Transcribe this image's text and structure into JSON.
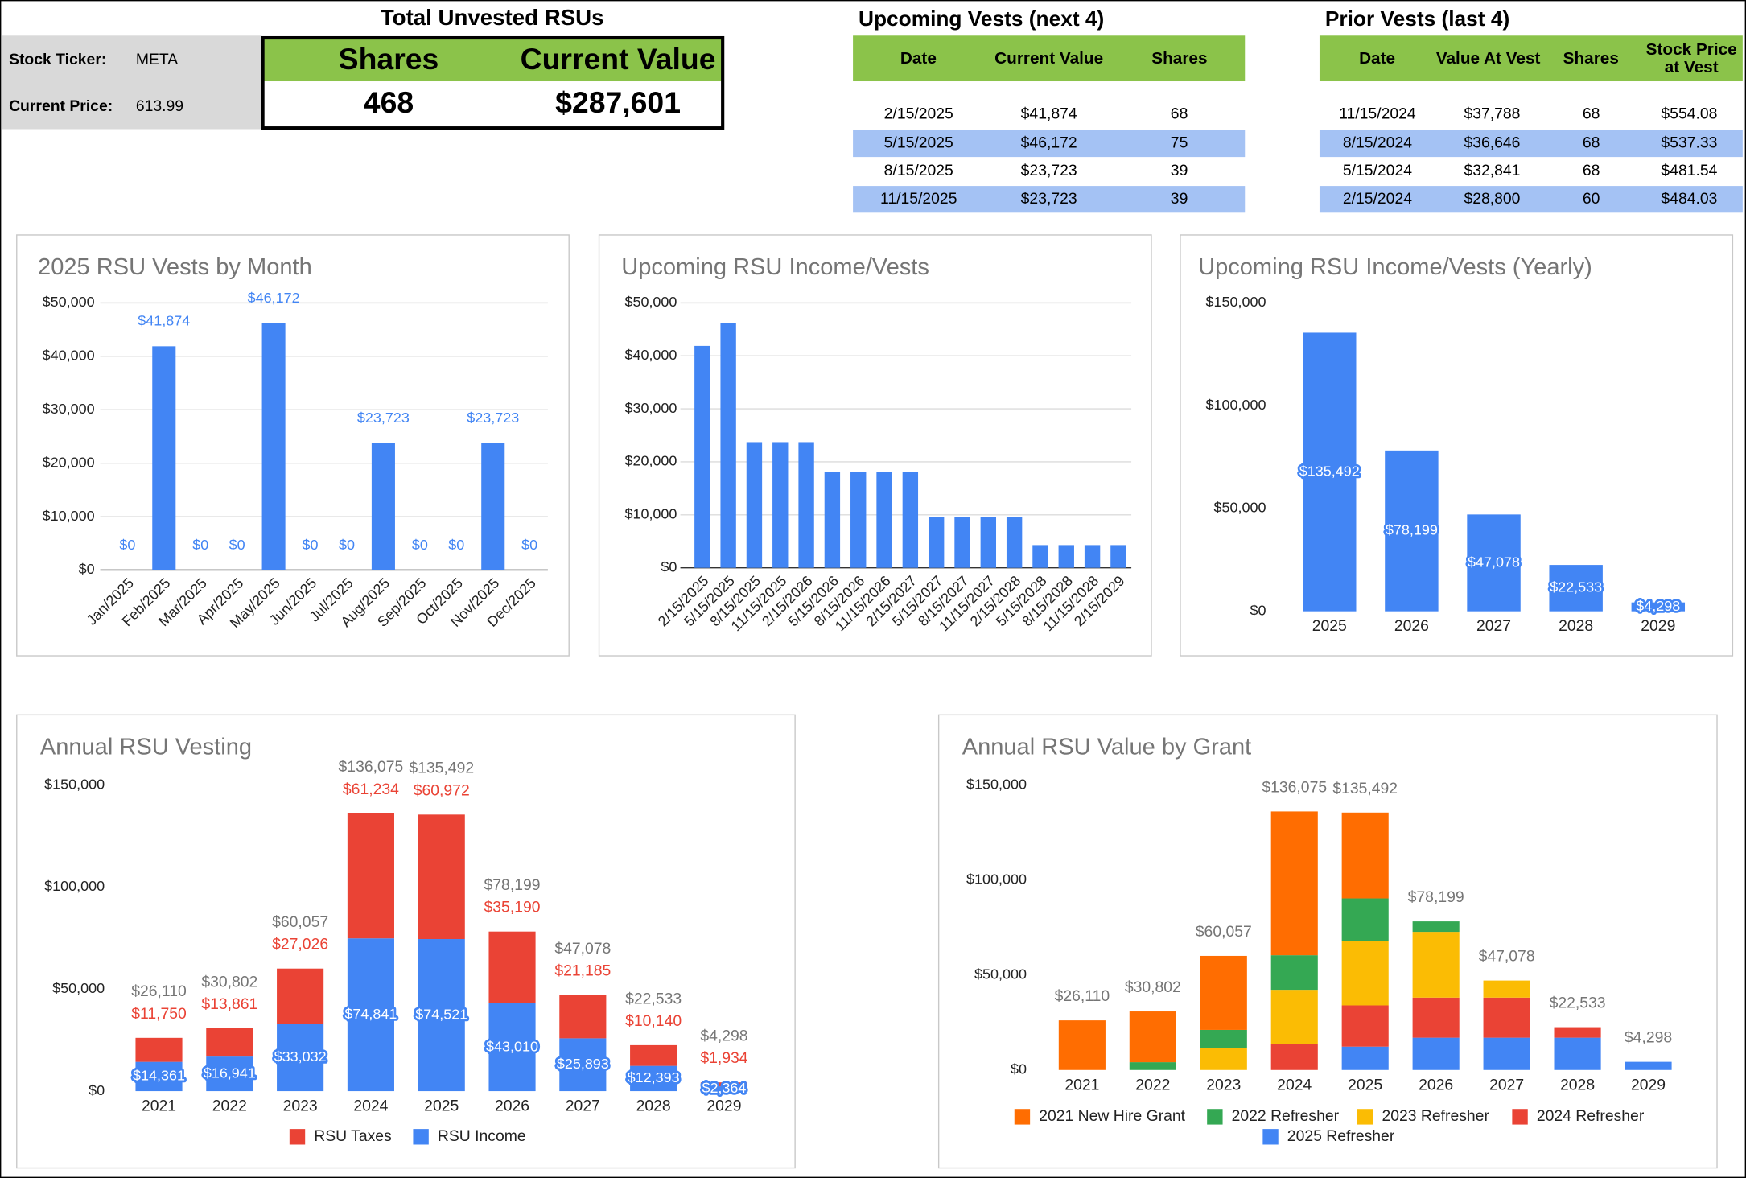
{
  "summary": {
    "title": "Total Unvested RSUs",
    "fields": [
      {
        "label": "Stock Ticker:",
        "value": "META"
      },
      {
        "label": "Current Price:",
        "value": "613.99"
      }
    ],
    "columns": [
      "Shares",
      "Current Value"
    ],
    "values": [
      "468",
      "$287,601"
    ]
  },
  "upcoming": {
    "title": "Upcoming Vests (next 4)",
    "columns": [
      "Date",
      "Current Value",
      "Shares"
    ],
    "rows": [
      [
        "2/15/2025",
        "$41,874",
        "68"
      ],
      [
        "5/15/2025",
        "$46,172",
        "75"
      ],
      [
        "8/15/2025",
        "$23,723",
        "39"
      ],
      [
        "11/15/2025",
        "$23,723",
        "39"
      ]
    ]
  },
  "prior": {
    "title": "Prior Vests (last 4)",
    "columns": [
      "Date",
      "Value At Vest",
      "Shares",
      "Stock Price at Vest"
    ],
    "rows": [
      [
        "11/15/2024",
        "$37,788",
        "68",
        "$554.08"
      ],
      [
        "8/15/2024",
        "$36,646",
        "68",
        "$537.33"
      ],
      [
        "5/15/2024",
        "$32,841",
        "68",
        "$481.54"
      ],
      [
        "2/15/2024",
        "$28,800",
        "60",
        "$484.03"
      ]
    ]
  },
  "chart_data": [
    {
      "type": "bar",
      "title": "2025 RSU Vests by Month",
      "color": "#4285f4",
      "grid": true,
      "categories": [
        "Jan/2025",
        "Feb/2025",
        "Mar/2025",
        "Apr/2025",
        "May/2025",
        "Jun/2025",
        "Jul/2025",
        "Aug/2025",
        "Sep/2025",
        "Oct/2025",
        "Nov/2025",
        "Dec/2025"
      ],
      "values": [
        0,
        41874,
        0,
        0,
        46172,
        0,
        0,
        23723,
        0,
        0,
        23723,
        0
      ],
      "value_labels": [
        "$0",
        "$41,874",
        "$0",
        "$0",
        "$46,172",
        "$0",
        "$0",
        "$23,723",
        "$0",
        "$0",
        "$23,723",
        "$0"
      ],
      "ylim": [
        0,
        50000
      ],
      "yticks": [
        {
          "value": 0,
          "label": "$0"
        },
        {
          "value": 10000,
          "label": "$10,000"
        },
        {
          "value": 20000,
          "label": "$20,000"
        },
        {
          "value": 30000,
          "label": "$30,000"
        },
        {
          "value": 40000,
          "label": "$40,000"
        },
        {
          "value": 50000,
          "label": "$50,000"
        }
      ]
    },
    {
      "type": "bar",
      "title": "Upcoming RSU Income/Vests",
      "color": "#4285f4",
      "grid": true,
      "categories": [
        "2/15/2025",
        "5/15/2025",
        "8/15/2025",
        "11/15/2025",
        "2/15/2026",
        "5/15/2026",
        "8/15/2026",
        "11/15/2026",
        "2/15/2027",
        "5/15/2027",
        "8/15/2027",
        "11/15/2027",
        "2/15/2028",
        "5/15/2028",
        "8/15/2028",
        "11/15/2028",
        "2/15/2029"
      ],
      "values": [
        41874,
        46172,
        23723,
        23723,
        23723,
        18159,
        18159,
        18159,
        18159,
        9640,
        9640,
        9640,
        9640,
        4298,
        4298,
        4298,
        4298
      ],
      "ylim": [
        0,
        50000
      ],
      "yticks": [
        {
          "value": 0,
          "label": "$0"
        },
        {
          "value": 10000,
          "label": "$10,000"
        },
        {
          "value": 20000,
          "label": "$20,000"
        },
        {
          "value": 30000,
          "label": "$30,000"
        },
        {
          "value": 40000,
          "label": "$40,000"
        },
        {
          "value": 50000,
          "label": "$50,000"
        }
      ]
    },
    {
      "type": "bar",
      "title": "Upcoming RSU Income/Vests (Yearly)",
      "color": "#4285f4",
      "grid": false,
      "categories": [
        "2025",
        "2026",
        "2027",
        "2028",
        "2029"
      ],
      "values": [
        135492,
        78199,
        47078,
        22533,
        4298
      ],
      "value_labels": [
        "$135,492",
        "$78,199",
        "$47,078",
        "$22,533",
        "$4,298"
      ],
      "ylim": [
        0,
        150000
      ],
      "yticks": [
        {
          "value": 0,
          "label": "$0"
        },
        {
          "value": 50000,
          "label": "$50,000"
        },
        {
          "value": 100000,
          "label": "$100,000"
        },
        {
          "value": 150000,
          "label": "$150,000"
        }
      ]
    },
    {
      "type": "stacked_bar",
      "title": "Annual RSU Vesting",
      "grid": false,
      "categories": [
        "2021",
        "2022",
        "2023",
        "2024",
        "2025",
        "2026",
        "2027",
        "2028",
        "2029"
      ],
      "series": [
        {
          "name": "RSU Income",
          "color": "#4285f4",
          "values": [
            14361,
            16941,
            33032,
            74841,
            74521,
            43010,
            25893,
            12393,
            2364
          ],
          "value_labels": [
            "$14,361",
            "$16,941",
            "$33,032",
            "$74,841",
            "$74,521",
            "$43,010",
            "$25,893",
            "$12,393",
            "$2,364"
          ]
        },
        {
          "name": "RSU Taxes",
          "color": "#ea4335",
          "values": [
            11750,
            13861,
            27026,
            61234,
            60972,
            35190,
            21185,
            10140,
            1934
          ],
          "value_labels": [
            "$11,750",
            "$13,861",
            "$27,026",
            "$61,234",
            "$60,972",
            "$35,190",
            "$21,185",
            "$10,140",
            "$1,934"
          ]
        }
      ],
      "totals": [
        26110,
        30802,
        60057,
        136075,
        135492,
        78199,
        47078,
        22533,
        4298
      ],
      "total_labels": [
        "$26,110",
        "$30,802",
        "$60,057",
        "$136,075",
        "$135,492",
        "$78,199",
        "$47,078",
        "$22,533",
        "$4,298"
      ],
      "ylim": [
        0,
        150000
      ],
      "yticks": [
        {
          "value": 0,
          "label": "$0"
        },
        {
          "value": 50000,
          "label": "$50,000"
        },
        {
          "value": 100000,
          "label": "$100,000"
        },
        {
          "value": 150000,
          "label": "$150,000"
        }
      ]
    },
    {
      "type": "stacked_bar",
      "title": "Annual RSU Value by Grant",
      "grid": false,
      "categories": [
        "2021",
        "2022",
        "2023",
        "2024",
        "2025",
        "2026",
        "2027",
        "2028",
        "2029"
      ],
      "series": [
        {
          "name": "2025 Refresher",
          "color": "#4285f4",
          "values": [
            0,
            0,
            0,
            0,
            12300,
            17000,
            17000,
            17000,
            4298
          ]
        },
        {
          "name": "2024 Refresher",
          "color": "#ea4335",
          "values": [
            0,
            0,
            0,
            13500,
            21700,
            21100,
            21100,
            5533,
            0
          ]
        },
        {
          "name": "2023 Refresher",
          "color": "#fbbc04",
          "values": [
            0,
            0,
            11700,
            28700,
            34000,
            34600,
            8978,
            0,
            0
          ]
        },
        {
          "name": "2022 Refresher",
          "color": "#34a853",
          "values": [
            0,
            4100,
            9400,
            18200,
            22300,
            5500,
            0,
            0,
            0
          ]
        },
        {
          "name": "2021 New Hire Grant",
          "color": "#ff6d01",
          "values": [
            26110,
            26702,
            38957,
            75675,
            45192,
            0,
            0,
            0,
            0
          ]
        }
      ],
      "totals": [
        26110,
        30802,
        60057,
        136075,
        135492,
        78199,
        47078,
        22533,
        4298
      ],
      "total_labels": [
        "$26,110",
        "$30,802",
        "$60,057",
        "$136,075",
        "$135,492",
        "$78,199",
        "$47,078",
        "$22,533",
        "$4,298"
      ],
      "ylim": [
        0,
        150000
      ],
      "yticks": [
        {
          "value": 0,
          "label": "$0"
        },
        {
          "value": 50000,
          "label": "$50,000"
        },
        {
          "value": 100000,
          "label": "$100,000"
        },
        {
          "value": 150000,
          "label": "$150,000"
        }
      ]
    }
  ]
}
